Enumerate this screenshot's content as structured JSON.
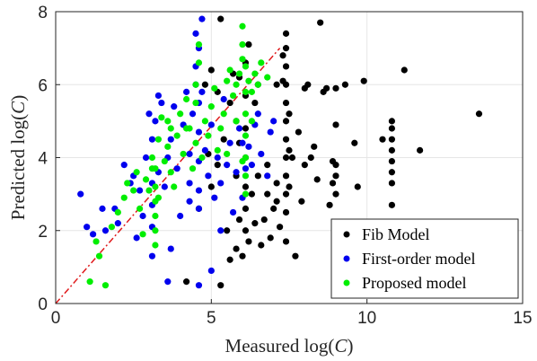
{
  "chart_data": {
    "type": "scatter",
    "title": "",
    "xlabel": "Measured log(C)",
    "xlabel_parts": {
      "prefix": "Measured log(",
      "var": "C",
      "suffix": ")"
    },
    "ylabel": "Predicted log(C)",
    "ylabel_parts": {
      "prefix": "Predicted log(",
      "var": "C",
      "suffix": ")"
    },
    "xlim": [
      0,
      15
    ],
    "ylim": [
      0,
      8
    ],
    "xticks": [
      0,
      5,
      10,
      15
    ],
    "yticks": [
      0,
      2,
      4,
      6,
      8
    ],
    "grid": true,
    "legend_position": "bottom-right",
    "reference_line": {
      "style": "dash-dot",
      "color": "#e0191b",
      "from": [
        0,
        0
      ],
      "to": [
        7.2,
        7.0
      ]
    },
    "series": [
      {
        "name": "Fib Model",
        "color": "#000000",
        "points": [
          [
            4.2,
            0.6
          ],
          [
            5.3,
            0.5
          ],
          [
            5.6,
            1.2
          ],
          [
            5.5,
            2.0
          ],
          [
            4.6,
            2.6
          ],
          [
            5.0,
            3.2
          ],
          [
            5.2,
            3.8
          ],
          [
            5.4,
            4.5
          ],
          [
            5.6,
            5.5
          ],
          [
            5.2,
            5.8
          ],
          [
            4.8,
            6.0
          ],
          [
            5.0,
            6.4
          ],
          [
            5.3,
            7.8
          ],
          [
            5.7,
            6.3
          ],
          [
            5.9,
            6.2
          ],
          [
            5.8,
            5.0
          ],
          [
            5.9,
            4.4
          ],
          [
            5.8,
            3.5
          ],
          [
            5.9,
            2.3
          ],
          [
            5.8,
            1.5
          ],
          [
            6.0,
            1.3
          ],
          [
            6.1,
            2.0
          ],
          [
            6.1,
            2.6
          ],
          [
            6.1,
            3.2
          ],
          [
            6.1,
            4.0
          ],
          [
            6.1,
            4.8
          ],
          [
            6.1,
            5.7
          ],
          [
            6.1,
            6.6
          ],
          [
            6.2,
            7.1
          ],
          [
            6.2,
            1.7
          ],
          [
            6.3,
            3.0
          ],
          [
            6.4,
            2.2
          ],
          [
            6.5,
            3.5
          ],
          [
            6.6,
            1.6
          ],
          [
            6.7,
            2.3
          ],
          [
            6.8,
            3.0
          ],
          [
            6.4,
            5.5
          ],
          [
            6.5,
            6.0
          ],
          [
            6.9,
            1.8
          ],
          [
            7.0,
            2.6
          ],
          [
            7.1,
            2.8
          ],
          [
            7.1,
            3.3
          ],
          [
            7.1,
            6.0
          ],
          [
            7.3,
            6.1
          ],
          [
            7.4,
            1.7
          ],
          [
            7.4,
            2.5
          ],
          [
            7.4,
            3.0
          ],
          [
            7.4,
            3.5
          ],
          [
            7.4,
            4.0
          ],
          [
            7.4,
            4.5
          ],
          [
            7.4,
            5.0
          ],
          [
            7.4,
            5.5
          ],
          [
            7.4,
            6.0
          ],
          [
            7.4,
            6.5
          ],
          [
            7.4,
            7.0
          ],
          [
            7.4,
            7.4
          ],
          [
            7.3,
            6.8
          ],
          [
            7.5,
            5.2
          ],
          [
            7.5,
            4.2
          ],
          [
            7.5,
            3.2
          ],
          [
            7.6,
            4.0
          ],
          [
            7.7,
            1.3
          ],
          [
            7.8,
            4.7
          ],
          [
            7.9,
            2.8
          ],
          [
            8.0,
            3.8
          ],
          [
            8.0,
            5.9
          ],
          [
            8.1,
            6.0
          ],
          [
            8.2,
            4.0
          ],
          [
            8.4,
            3.4
          ],
          [
            8.5,
            7.7
          ],
          [
            8.6,
            5.8
          ],
          [
            8.7,
            5.9
          ],
          [
            8.8,
            2.7
          ],
          [
            8.9,
            3.3
          ],
          [
            8.9,
            3.9
          ],
          [
            9.0,
            3.0
          ],
          [
            9.0,
            3.5
          ],
          [
            9.0,
            3.8
          ],
          [
            9.0,
            4.9
          ],
          [
            9.0,
            5.9
          ],
          [
            9.3,
            6.0
          ],
          [
            9.6,
            4.4
          ],
          [
            9.7,
            3.2
          ],
          [
            9.9,
            6.1
          ],
          [
            10.5,
            4.5
          ],
          [
            10.8,
            2.7
          ],
          [
            10.8,
            3.3
          ],
          [
            10.8,
            3.6
          ],
          [
            10.8,
            3.9
          ],
          [
            10.8,
            4.2
          ],
          [
            10.8,
            4.5
          ],
          [
            10.8,
            4.8
          ],
          [
            10.8,
            5.0
          ],
          [
            11.2,
            6.4
          ],
          [
            11.7,
            4.2
          ],
          [
            13.6,
            5.2
          ],
          [
            8.3,
            4.3
          ],
          [
            6.8,
            3.8
          ],
          [
            7.2,
            2.1
          ],
          [
            4.9,
            4.1
          ]
        ]
      },
      {
        "name": "First-order model",
        "color": "#0000ee",
        "points": [
          [
            0.8,
            3.0
          ],
          [
            1.0,
            2.1
          ],
          [
            1.2,
            1.9
          ],
          [
            1.5,
            2.6
          ],
          [
            1.6,
            2.0
          ],
          [
            1.9,
            2.6
          ],
          [
            2.0,
            2.2
          ],
          [
            2.2,
            3.8
          ],
          [
            2.5,
            3.5
          ],
          [
            2.6,
            1.8
          ],
          [
            2.7,
            3.1
          ],
          [
            2.8,
            2.4
          ],
          [
            2.9,
            4.0
          ],
          [
            3.0,
            5.2
          ],
          [
            3.1,
            1.3
          ],
          [
            3.1,
            2.1
          ],
          [
            3.1,
            2.7
          ],
          [
            3.1,
            3.3
          ],
          [
            3.1,
            4.5
          ],
          [
            3.2,
            5.0
          ],
          [
            3.3,
            3.6
          ],
          [
            3.3,
            5.7
          ],
          [
            3.4,
            5.5
          ],
          [
            3.5,
            3.2
          ],
          [
            3.6,
            4.0
          ],
          [
            3.6,
            0.6
          ],
          [
            3.7,
            1.5
          ],
          [
            3.7,
            4.5
          ],
          [
            3.8,
            5.4
          ],
          [
            3.9,
            3.7
          ],
          [
            4.0,
            2.4
          ],
          [
            4.1,
            4.9
          ],
          [
            4.2,
            5.8
          ],
          [
            4.3,
            4.1
          ],
          [
            4.3,
            3.3
          ],
          [
            4.4,
            5.2
          ],
          [
            4.5,
            6.0
          ],
          [
            4.5,
            6.5
          ],
          [
            4.5,
            7.4
          ],
          [
            4.6,
            7.0
          ],
          [
            4.6,
            5.5
          ],
          [
            4.6,
            4.7
          ],
          [
            4.6,
            3.9
          ],
          [
            4.6,
            3.1
          ],
          [
            4.6,
            2.6
          ],
          [
            4.6,
            0.5
          ],
          [
            4.7,
            7.8
          ],
          [
            4.7,
            5.8
          ],
          [
            4.8,
            4.2
          ],
          [
            4.9,
            3.5
          ],
          [
            5.0,
            4.9
          ],
          [
            5.1,
            2.9
          ],
          [
            5.2,
            4.0
          ],
          [
            5.3,
            3.3
          ],
          [
            5.4,
            5.6
          ],
          [
            5.5,
            3.8
          ],
          [
            5.6,
            4.4
          ],
          [
            5.7,
            2.5
          ],
          [
            5.8,
            3.6
          ],
          [
            5.9,
            4.8
          ],
          [
            6.0,
            4.4
          ],
          [
            6.1,
            3.7
          ],
          [
            6.2,
            4.3
          ],
          [
            6.3,
            3.8
          ],
          [
            6.4,
            4.9
          ],
          [
            6.5,
            5.2
          ],
          [
            6.6,
            4.1
          ],
          [
            6.8,
            3.5
          ],
          [
            6.9,
            4.7
          ],
          [
            7.0,
            5.0
          ],
          [
            5.0,
            0.9
          ],
          [
            4.3,
            2.8
          ],
          [
            2.4,
            3.3
          ],
          [
            5.3,
            2.0
          ],
          [
            6.0,
            2.9
          ]
        ]
      },
      {
        "name": "Proposed model",
        "color": "#00ee00",
        "points": [
          [
            1.1,
            0.6
          ],
          [
            1.3,
            1.7
          ],
          [
            1.4,
            1.3
          ],
          [
            1.6,
            0.5
          ],
          [
            1.8,
            2.1
          ],
          [
            2.0,
            2.5
          ],
          [
            2.2,
            2.9
          ],
          [
            2.3,
            3.3
          ],
          [
            2.5,
            3.1
          ],
          [
            2.6,
            3.6
          ],
          [
            2.7,
            2.6
          ],
          [
            2.8,
            1.9
          ],
          [
            2.9,
            3.4
          ],
          [
            3.0,
            3.1
          ],
          [
            3.1,
            4.0
          ],
          [
            3.2,
            3.7
          ],
          [
            3.2,
            3.2
          ],
          [
            3.2,
            2.8
          ],
          [
            3.2,
            2.4
          ],
          [
            3.2,
            2.0
          ],
          [
            3.2,
            1.6
          ],
          [
            3.3,
            4.5
          ],
          [
            3.4,
            5.1
          ],
          [
            3.5,
            3.9
          ],
          [
            3.6,
            4.3
          ],
          [
            3.7,
            3.6
          ],
          [
            3.7,
            4.8
          ],
          [
            3.8,
            3.2
          ],
          [
            3.9,
            4.6
          ],
          [
            4.0,
            5.2
          ],
          [
            4.1,
            4.1
          ],
          [
            4.2,
            5.6
          ],
          [
            4.3,
            4.8
          ],
          [
            4.4,
            3.7
          ],
          [
            4.5,
            4.4
          ],
          [
            4.5,
            5.5
          ],
          [
            4.5,
            6.0
          ],
          [
            4.6,
            6.6
          ],
          [
            4.6,
            7.1
          ],
          [
            4.7,
            4.0
          ],
          [
            4.8,
            5.0
          ],
          [
            4.9,
            4.6
          ],
          [
            5.0,
            5.4
          ],
          [
            5.1,
            5.9
          ],
          [
            5.2,
            4.2
          ],
          [
            5.3,
            4.8
          ],
          [
            5.4,
            5.2
          ],
          [
            5.5,
            6.1
          ],
          [
            5.6,
            6.4
          ],
          [
            5.7,
            5.7
          ],
          [
            5.8,
            6.0
          ],
          [
            5.9,
            6.3
          ],
          [
            6.0,
            6.7
          ],
          [
            6.0,
            7.1
          ],
          [
            6.0,
            7.6
          ],
          [
            6.1,
            6.5
          ],
          [
            6.1,
            5.8
          ],
          [
            6.1,
            5.2
          ],
          [
            6.1,
            4.6
          ],
          [
            6.1,
            4.0
          ],
          [
            6.1,
            3.5
          ],
          [
            6.1,
            3.0
          ],
          [
            6.2,
            6.1
          ],
          [
            6.3,
            5.8
          ],
          [
            6.4,
            6.3
          ],
          [
            6.5,
            6.0
          ],
          [
            6.6,
            6.6
          ],
          [
            6.8,
            6.2
          ],
          [
            6.3,
            5.0
          ],
          [
            6.0,
            3.9
          ],
          [
            3.1,
            3.7
          ],
          [
            3.3,
            2.9
          ],
          [
            3.6,
            5.0
          ],
          [
            4.2,
            4.8
          ],
          [
            5.5,
            4.1
          ],
          [
            5.8,
            5.0
          ]
        ]
      }
    ]
  }
}
